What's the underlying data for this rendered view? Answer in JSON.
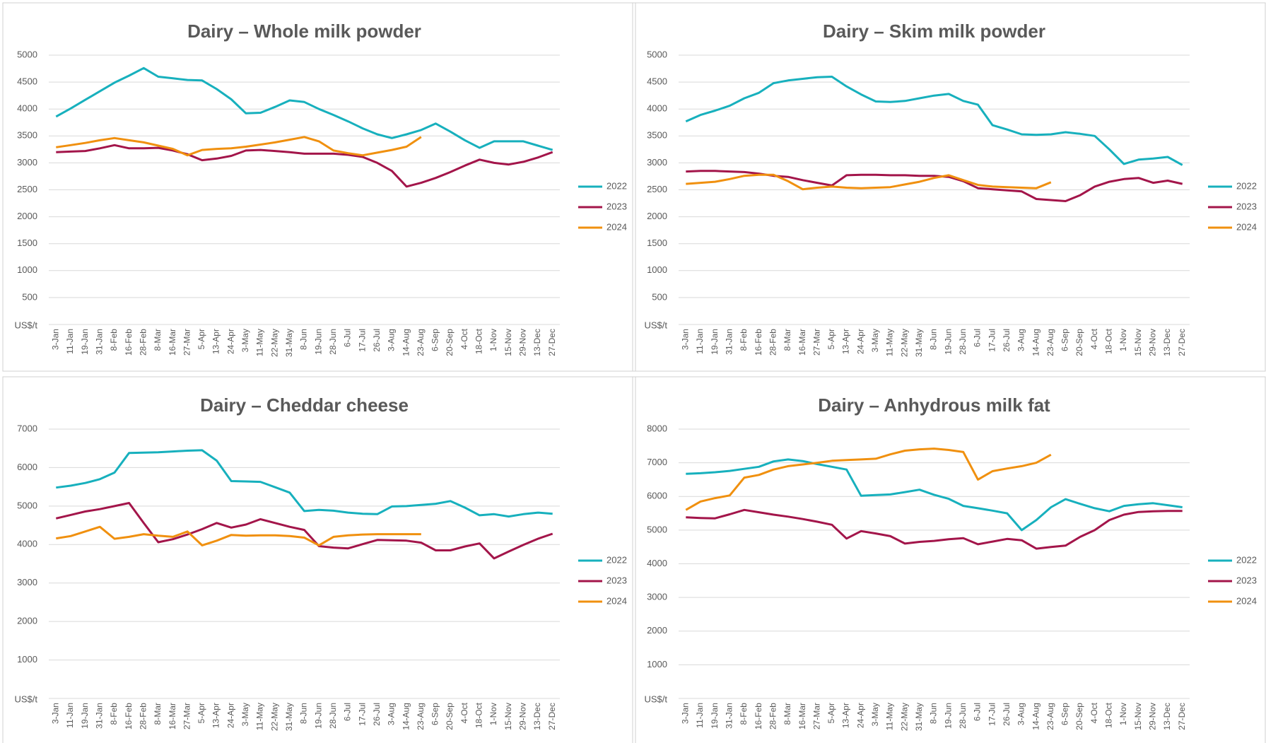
{
  "chart_data": [
    {
      "type": "line",
      "title": "Dairy – Whole milk powder",
      "y_label": "US$/t",
      "categories": [
        "3-Jan",
        "11-Jan",
        "19-Jan",
        "31-Jan",
        "8-Feb",
        "16-Feb",
        "28-Feb",
        "8-Mar",
        "16-Mar",
        "27-Mar",
        "5-Apr",
        "13-Apr",
        "24-Apr",
        "3-May",
        "11-May",
        "22-May",
        "31-May",
        "8-Jun",
        "19-Jun",
        "28-Jun",
        "6-Jul",
        "17-Jul",
        "26-Jul",
        "3-Aug",
        "14-Aug",
        "23-Aug",
        "6-Sep",
        "20-Sep",
        "4-Oct",
        "18-Oct",
        "1-Nov",
        "15-Nov",
        "29-Nov",
        "13-Dec",
        "27-Dec"
      ],
      "ylim": [
        0,
        5000
      ],
      "yticks": [
        500,
        1000,
        1500,
        2000,
        2500,
        3000,
        3500,
        4000,
        4500,
        5000
      ],
      "grid": true,
      "legend": "right",
      "series": [
        {
          "name": "2022",
          "color": "#17b0bd",
          "values": [
            3860,
            4010,
            4170,
            4330,
            4490,
            4620,
            4760,
            4600,
            4570,
            4540,
            4530,
            4370,
            4180,
            3920,
            3930,
            4040,
            4160,
            4130,
            4000,
            3890,
            3770,
            3640,
            3530,
            3460,
            3530,
            3610,
            3730,
            3580,
            3420,
            3280,
            3400,
            3400,
            3400,
            3320,
            3240
          ]
        },
        {
          "name": "2023",
          "color": "#a3154a",
          "values": [
            3200,
            3210,
            3220,
            3270,
            3330,
            3270,
            3270,
            3280,
            3230,
            3160,
            3050,
            3080,
            3130,
            3230,
            3240,
            3220,
            3200,
            3170,
            3170,
            3170,
            3150,
            3110,
            3000,
            2850,
            2560,
            2630,
            2720,
            2830,
            2950,
            3060,
            3000,
            2970,
            3020,
            3100,
            3200
          ]
        },
        {
          "name": "2024",
          "color": "#f0900f",
          "values": [
            3290,
            3330,
            3370,
            3420,
            3460,
            3420,
            3380,
            3320,
            3260,
            3140,
            3240,
            3260,
            3270,
            3300,
            3340,
            3380,
            3430,
            3480,
            3400,
            3230,
            3180,
            3140,
            3190,
            3240,
            3300,
            3480,
            null,
            null,
            null,
            null,
            null,
            null,
            null,
            null,
            null
          ]
        }
      ]
    },
    {
      "type": "line",
      "title": "Dairy – Skim milk powder",
      "y_label": "US$/t",
      "categories": [
        "3-Jan",
        "11-Jan",
        "19-Jan",
        "31-Jan",
        "8-Feb",
        "16-Feb",
        "28-Feb",
        "8-Mar",
        "16-Mar",
        "27-Mar",
        "5-Apr",
        "13-Apr",
        "24-Apr",
        "3-May",
        "11-May",
        "22-May",
        "31-May",
        "8-Jun",
        "19-Jun",
        "28-Jun",
        "6-Jul",
        "17-Jul",
        "26-Jul",
        "3-Aug",
        "14-Aug",
        "23-Aug",
        "6-Sep",
        "20-Sep",
        "4-Oct",
        "18-Oct",
        "1-Nov",
        "15-Nov",
        "29-Nov",
        "13-Dec",
        "27-Dec"
      ],
      "ylim": [
        0,
        5000
      ],
      "yticks": [
        500,
        1000,
        1500,
        2000,
        2500,
        3000,
        3500,
        4000,
        4500,
        5000
      ],
      "grid": true,
      "legend": "right",
      "series": [
        {
          "name": "2022",
          "color": "#17b0bd",
          "values": [
            3770,
            3890,
            3970,
            4060,
            4200,
            4300,
            4480,
            4530,
            4560,
            4590,
            4600,
            4420,
            4270,
            4140,
            4130,
            4150,
            4200,
            4250,
            4280,
            4150,
            4080,
            3700,
            3620,
            3530,
            3520,
            3530,
            3570,
            3540,
            3500,
            3250,
            2980,
            3060,
            3080,
            3110,
            2960
          ]
        },
        {
          "name": "2023",
          "color": "#a3154a",
          "values": [
            2840,
            2850,
            2850,
            2840,
            2830,
            2800,
            2760,
            2740,
            2680,
            2630,
            2580,
            2770,
            2780,
            2780,
            2770,
            2770,
            2760,
            2760,
            2740,
            2660,
            2530,
            2510,
            2490,
            2470,
            2330,
            2310,
            2290,
            2400,
            2560,
            2650,
            2700,
            2720,
            2630,
            2670,
            2610
          ]
        },
        {
          "name": "2024",
          "color": "#f0900f",
          "values": [
            2610,
            2630,
            2650,
            2700,
            2760,
            2780,
            2780,
            2660,
            2510,
            2540,
            2560,
            2540,
            2530,
            2540,
            2550,
            2600,
            2650,
            2720,
            2770,
            2680,
            2590,
            2560,
            2550,
            2540,
            2530,
            2640,
            null,
            null,
            null,
            null,
            null,
            null,
            null,
            null,
            null
          ]
        }
      ]
    },
    {
      "type": "line",
      "title": "Dairy – Cheddar cheese",
      "y_label": "US$/t",
      "categories": [
        "3-Jan",
        "11-Jan",
        "19-Jan",
        "31-Jan",
        "8-Feb",
        "16-Feb",
        "28-Feb",
        "8-Mar",
        "16-Mar",
        "27-Mar",
        "5-Apr",
        "13-Apr",
        "24-Apr",
        "3-May",
        "11-May",
        "22-May",
        "31-May",
        "8-Jun",
        "19-Jun",
        "28-Jun",
        "6-Jul",
        "17-Jul",
        "26-Jul",
        "3-Aug",
        "14-Aug",
        "23-Aug",
        "6-Sep",
        "20-Sep",
        "4-Oct",
        "18-Oct",
        "1-Nov",
        "15-Nov",
        "29-Nov",
        "13-Dec",
        "27-Dec"
      ],
      "ylim": [
        0,
        7000
      ],
      "yticks": [
        1000,
        2000,
        3000,
        4000,
        5000,
        6000,
        7000
      ],
      "grid": true,
      "legend": "right",
      "series": [
        {
          "name": "2022",
          "color": "#17b0bd",
          "values": [
            5480,
            5530,
            5600,
            5700,
            5870,
            6380,
            6390,
            6400,
            6420,
            6440,
            6450,
            6180,
            5650,
            5640,
            5630,
            5490,
            5350,
            4870,
            4900,
            4880,
            4830,
            4800,
            4790,
            4990,
            5000,
            5030,
            5060,
            5130,
            4960,
            4760,
            4790,
            4730,
            4790,
            4830,
            4800
          ]
        },
        {
          "name": "2023",
          "color": "#a3154a",
          "values": [
            4680,
            4770,
            4860,
            4920,
            5000,
            5080,
            4560,
            4060,
            4140,
            4260,
            4400,
            4560,
            4440,
            4520,
            4660,
            4560,
            4460,
            4380,
            3960,
            3920,
            3900,
            4010,
            4120,
            4110,
            4100,
            4050,
            3850,
            3850,
            3950,
            4030,
            3640,
            3820,
            3990,
            4150,
            4280
          ]
        },
        {
          "name": "2024",
          "color": "#f0900f",
          "values": [
            4160,
            4220,
            4340,
            4460,
            4150,
            4200,
            4270,
            4230,
            4200,
            4340,
            3980,
            4100,
            4250,
            4230,
            4240,
            4240,
            4220,
            4180,
            3980,
            4200,
            4240,
            4260,
            4270,
            4270,
            4270,
            4270,
            null,
            null,
            null,
            null,
            null,
            null,
            null,
            null,
            null
          ]
        }
      ]
    },
    {
      "type": "line",
      "title": "Dairy – Anhydrous milk fat",
      "y_label": "US$/t",
      "categories": [
        "3-Jan",
        "11-Jan",
        "19-Jan",
        "31-Jan",
        "8-Feb",
        "16-Feb",
        "28-Feb",
        "8-Mar",
        "16-Mar",
        "27-Mar",
        "5-Apr",
        "13-Apr",
        "24-Apr",
        "3-May",
        "11-May",
        "22-May",
        "31-May",
        "8-Jun",
        "19-Jun",
        "28-Jun",
        "6-Jul",
        "17-Jul",
        "26-Jul",
        "3-Aug",
        "14-Aug",
        "23-Aug",
        "6-Sep",
        "20-Sep",
        "4-Oct",
        "18-Oct",
        "1-Nov",
        "15-Nov",
        "29-Nov",
        "13-Dec",
        "27-Dec"
      ],
      "ylim": [
        0,
        8000
      ],
      "yticks": [
        1000,
        2000,
        3000,
        4000,
        5000,
        6000,
        7000,
        8000
      ],
      "grid": true,
      "legend": "right",
      "series": [
        {
          "name": "2022",
          "color": "#17b0bd",
          "values": [
            6670,
            6690,
            6720,
            6760,
            6820,
            6880,
            7040,
            7100,
            7050,
            6960,
            6880,
            6800,
            6020,
            6040,
            6060,
            6130,
            6200,
            6050,
            5930,
            5720,
            5650,
            5580,
            5500,
            5000,
            5300,
            5680,
            5920,
            5780,
            5650,
            5560,
            5720,
            5770,
            5800,
            5740,
            5680
          ]
        },
        {
          "name": "2023",
          "color": "#a3154a",
          "values": [
            5380,
            5360,
            5350,
            5470,
            5600,
            5530,
            5460,
            5400,
            5330,
            5250,
            5160,
            4750,
            4970,
            4900,
            4820,
            4600,
            4650,
            4680,
            4730,
            4760,
            4580,
            4660,
            4740,
            4700,
            4450,
            4500,
            4540,
            4800,
            5000,
            5300,
            5460,
            5540,
            5560,
            5570,
            5570
          ]
        },
        {
          "name": "2024",
          "color": "#f0900f",
          "values": [
            5600,
            5850,
            5950,
            6030,
            6560,
            6640,
            6800,
            6900,
            6950,
            7000,
            7060,
            7080,
            7100,
            7120,
            7250,
            7360,
            7400,
            7420,
            7380,
            7320,
            6500,
            6750,
            6830,
            6900,
            7000,
            7240,
            null,
            null,
            null,
            null,
            null,
            null,
            null,
            null,
            null
          ]
        }
      ]
    }
  ]
}
